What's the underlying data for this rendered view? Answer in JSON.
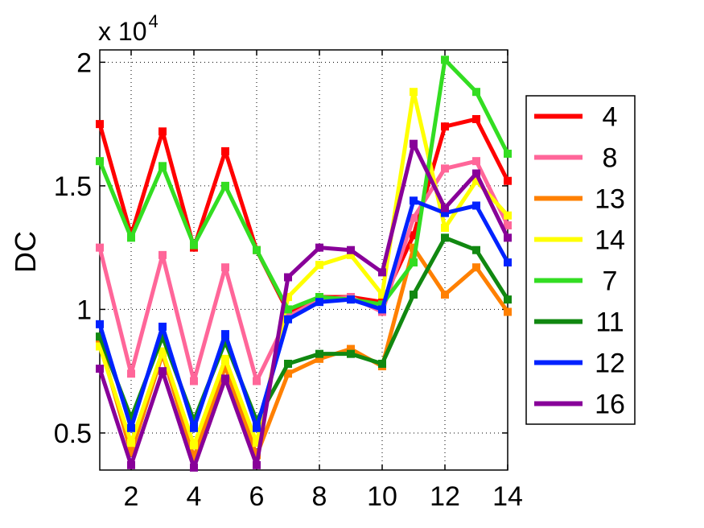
{
  "chart_data": {
    "type": "line",
    "ylabel": "DC",
    "y_multiplier": {
      "base": "x 10",
      "exponent": "4"
    },
    "xlim": [
      1,
      14
    ],
    "ylim": [
      3500,
      20500
    ],
    "x_ticks": [
      2,
      4,
      6,
      8,
      10,
      12,
      14
    ],
    "x_tick_labels": [
      "2",
      "4",
      "6",
      "8",
      "10",
      "12",
      "14"
    ],
    "y_ticks": [
      5000,
      10000,
      15000,
      20000
    ],
    "y_tick_labels": [
      "0.5",
      "1",
      "1.5",
      "2"
    ],
    "grid": true,
    "legend_position": "right",
    "x": [
      1,
      2,
      3,
      4,
      5,
      6,
      7,
      8,
      9,
      10,
      11,
      12,
      13,
      14
    ],
    "series": [
      {
        "name": "4",
        "color": "#ff0000",
        "values": [
          17500,
          13000,
          17200,
          12500,
          16400,
          12400,
          9900,
          10500,
          10500,
          10300,
          13000,
          17400,
          17700,
          15200
        ]
      },
      {
        "name": "8",
        "color": "#ff6699",
        "values": [
          12500,
          7400,
          12200,
          7100,
          11700,
          7100,
          9700,
          10400,
          10500,
          9900,
          13700,
          15700,
          16000,
          13400
        ]
      },
      {
        "name": "13",
        "color": "#ff8000",
        "values": [
          8700,
          4200,
          8200,
          4000,
          7700,
          4100,
          7400,
          8000,
          8400,
          7700,
          12500,
          10600,
          11700,
          9900
        ]
      },
      {
        "name": "14",
        "color": "#ffff00",
        "values": [
          8500,
          4600,
          8300,
          4500,
          8000,
          4600,
          10500,
          11800,
          12200,
          10600,
          18800,
          13300,
          15200,
          13800
        ]
      },
      {
        "name": "7",
        "color": "#33dd22",
        "values": [
          16000,
          12900,
          15800,
          12600,
          15000,
          12400,
          10000,
          10500,
          10400,
          10200,
          11900,
          20100,
          18800,
          16300
        ]
      },
      {
        "name": "11",
        "color": "#118811",
        "values": [
          8900,
          5600,
          8900,
          5500,
          8700,
          5500,
          7800,
          8200,
          8200,
          7800,
          10600,
          12900,
          12400,
          10400
        ]
      },
      {
        "name": "12",
        "color": "#0022ff",
        "values": [
          9400,
          5200,
          9300,
          5200,
          9000,
          5200,
          9600,
          10300,
          10400,
          10000,
          14400,
          13900,
          14200,
          11900
        ]
      },
      {
        "name": "16",
        "color": "#880099",
        "values": [
          7600,
          3700,
          7500,
          3600,
          7200,
          3700,
          11300,
          12500,
          12400,
          11500,
          16700,
          14100,
          15500,
          12900
        ]
      }
    ]
  }
}
